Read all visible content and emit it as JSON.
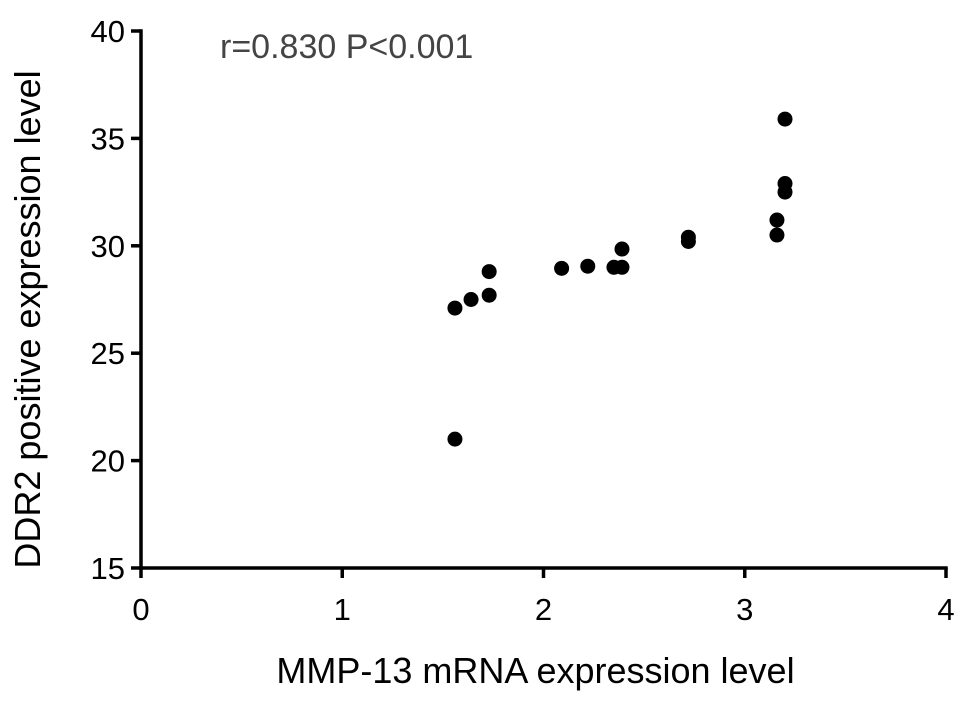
{
  "chart_data": {
    "type": "scatter",
    "annotation": "r=0.830 P<0.001",
    "xlabel": "MMP-13 mRNA expression level",
    "ylabel": "DDR2 positive expression level",
    "xlim": [
      0,
      4
    ],
    "ylim": [
      15,
      40
    ],
    "x_ticks": [
      0,
      1,
      2,
      3,
      4
    ],
    "y_ticks": [
      15,
      20,
      25,
      30,
      35,
      40
    ],
    "grid": false,
    "legend": "none",
    "marker_color": "#000000",
    "series": [
      {
        "points": [
          {
            "x": 1.56,
            "y": 21.0
          },
          {
            "x": 1.56,
            "y": 27.1
          },
          {
            "x": 1.64,
            "y": 27.5
          },
          {
            "x": 1.73,
            "y": 27.7
          },
          {
            "x": 1.73,
            "y": 28.8
          },
          {
            "x": 2.09,
            "y": 28.95
          },
          {
            "x": 2.22,
            "y": 29.05
          },
          {
            "x": 2.35,
            "y": 29.0
          },
          {
            "x": 2.39,
            "y": 29.0
          },
          {
            "x": 2.39,
            "y": 29.85
          },
          {
            "x": 2.72,
            "y": 30.2
          },
          {
            "x": 2.72,
            "y": 30.4
          },
          {
            "x": 3.16,
            "y": 30.5
          },
          {
            "x": 3.16,
            "y": 31.2
          },
          {
            "x": 3.2,
            "y": 32.5
          },
          {
            "x": 3.2,
            "y": 32.9
          },
          {
            "x": 3.2,
            "y": 35.9
          }
        ]
      }
    ]
  }
}
